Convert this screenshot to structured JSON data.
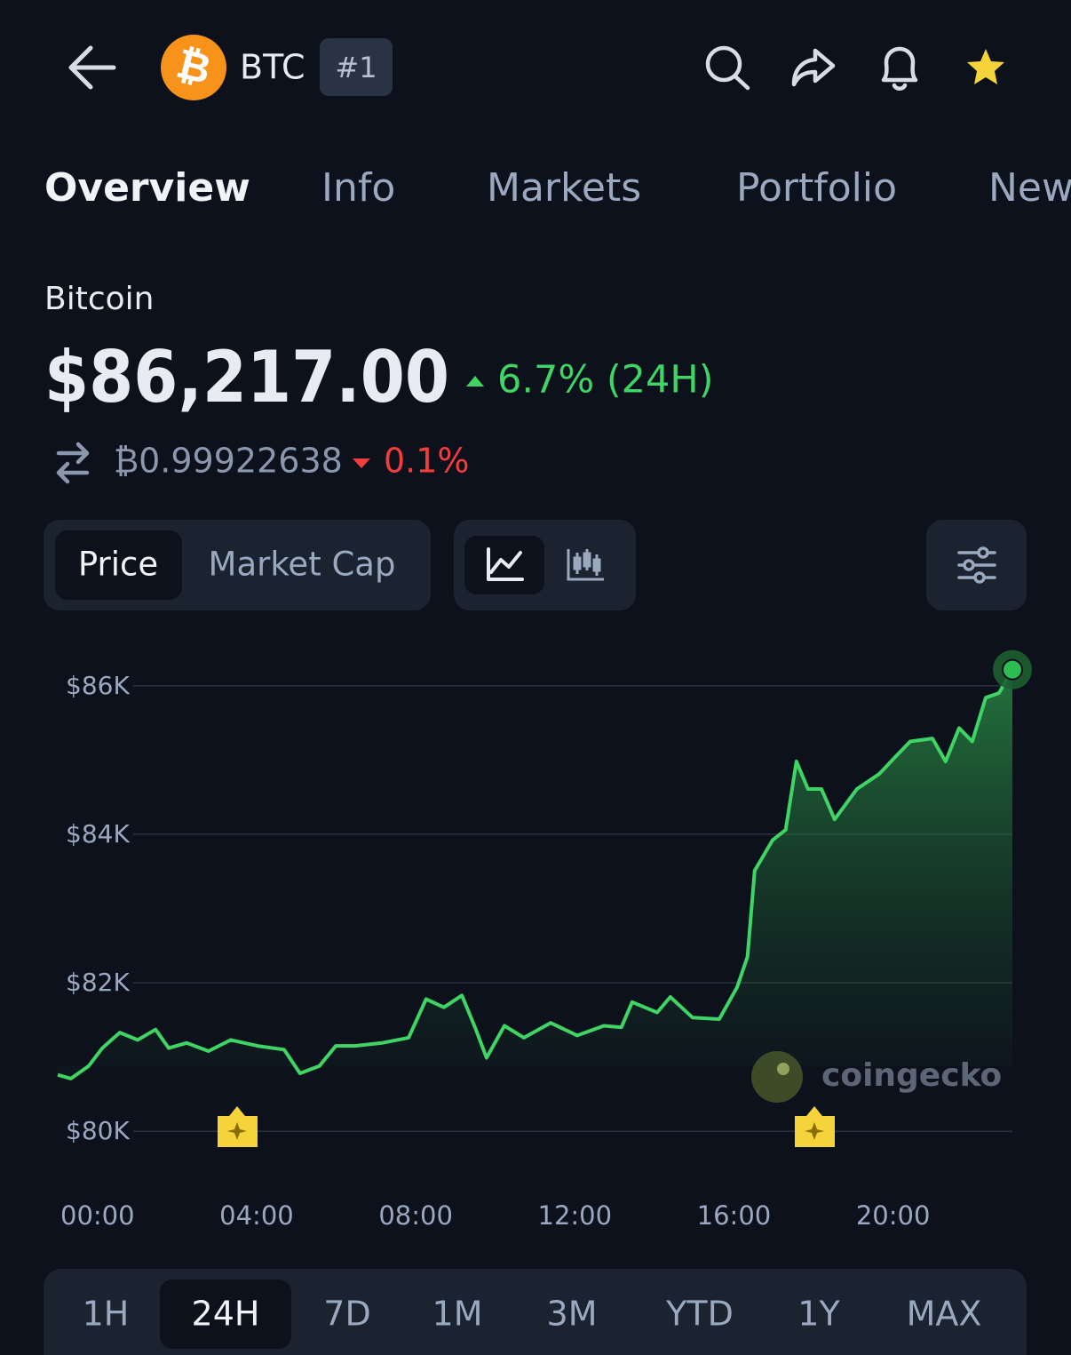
{
  "header": {
    "symbol": "BTC",
    "rank": "#1"
  },
  "tabs": [
    "Overview",
    "Info",
    "Markets",
    "Portfolio",
    "New"
  ],
  "coin": {
    "name": "Bitcoin",
    "price": "$86,217.00",
    "change_24h": "6.7% (24H)",
    "btc_price": "₿0.99922638",
    "btc_change": "0.1%"
  },
  "toggles": [
    "Price",
    "Market Cap"
  ],
  "chart_data": {
    "type": "line",
    "color": "#3fd464",
    "grid": true,
    "watermark": "coingecko",
    "x": [
      -1.0,
      -0.67,
      -0.22,
      0.12,
      0.56,
      1.01,
      1.46,
      1.79,
      2.24,
      2.79,
      3.35,
      4.02,
      4.69,
      5.09,
      5.58,
      5.99,
      6.48,
      7.15,
      7.82,
      8.26,
      8.71,
      9.16,
      9.49,
      9.78,
      10.23,
      10.72,
      11.39,
      12.06,
      12.73,
      13.17,
      13.44,
      14.07,
      14.4,
      14.96,
      15.63,
      16.08,
      16.34,
      16.52,
      16.97,
      17.3,
      17.57,
      17.86,
      18.2,
      18.53,
      19.09,
      19.65,
      20.09,
      20.43,
      20.99,
      21.32,
      21.66,
      21.99,
      22.33,
      22.66,
      23.0
    ],
    "values": [
      80760,
      80710,
      80880,
      81120,
      81330,
      81230,
      81370,
      81120,
      81190,
      81080,
      81230,
      81150,
      81100,
      80780,
      80880,
      81150,
      81150,
      81190,
      81260,
      81780,
      81670,
      81830,
      81400,
      80990,
      81420,
      81260,
      81460,
      81290,
      81420,
      81400,
      81740,
      81600,
      81810,
      81530,
      81510,
      81940,
      82350,
      83510,
      83920,
      84060,
      84980,
      84610,
      84610,
      84200,
      84610,
      84810,
      85060,
      85250,
      85290,
      84980,
      85430,
      85250,
      85840,
      85900,
      86217
    ],
    "xlim": [
      -1,
      23
    ],
    "ylim": [
      79500,
      86500
    ],
    "xticks": [
      {
        "value": 0,
        "label": "00:00"
      },
      {
        "value": 4,
        "label": "04:00"
      },
      {
        "value": 8,
        "label": "08:00"
      },
      {
        "value": 12,
        "label": "12:00"
      },
      {
        "value": 16,
        "label": "16:00"
      },
      {
        "value": 20,
        "label": "20:00"
      }
    ],
    "yticks": [
      {
        "value": 80000,
        "label": "$80K"
      },
      {
        "value": 82000,
        "label": "$82K"
      },
      {
        "value": 84000,
        "label": "$84K"
      },
      {
        "value": 86000,
        "label": "$86K"
      }
    ]
  },
  "ranges": [
    "1H",
    "24H",
    "7D",
    "1M",
    "3M",
    "YTD",
    "1Y",
    "MAX"
  ]
}
